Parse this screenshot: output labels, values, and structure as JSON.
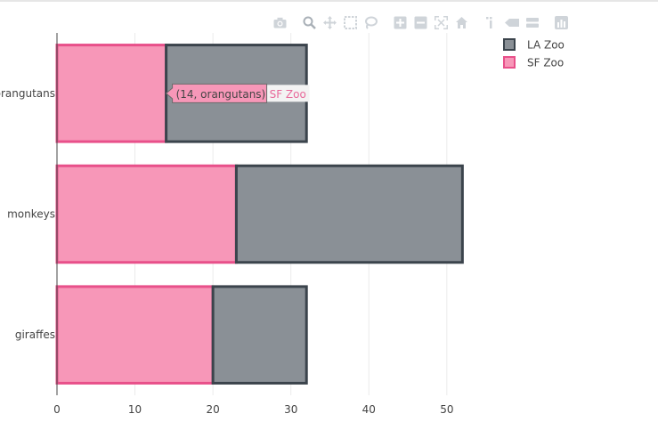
{
  "chart_data": {
    "type": "bar",
    "orientation": "horizontal",
    "barmode": "stack",
    "categories": [
      "giraffes",
      "monkeys",
      "orangutans"
    ],
    "series": [
      {
        "name": "SF Zoo",
        "values": [
          20,
          23,
          14
        ],
        "fill": "#f797b8",
        "line": "#e8508a"
      },
      {
        "name": "LA Zoo",
        "values": [
          12,
          29,
          18
        ],
        "fill": "#8a9096",
        "line": "#3b444c"
      }
    ],
    "x_ticks": [
      0,
      10,
      20,
      30,
      40,
      50
    ],
    "xlim": [
      0,
      54.7
    ],
    "grid": true,
    "legend_position": "top-right",
    "legend": [
      {
        "name": "LA Zoo",
        "fill": "#8a9096",
        "line": "#3b444c"
      },
      {
        "name": "SF Zoo",
        "fill": "#f797b8",
        "line": "#e8508a"
      }
    ],
    "hover": {
      "series": "SF Zoo",
      "category": "orangutans",
      "label": "(14, orangutans)",
      "name": "SF Zoo"
    },
    "colors": {
      "grid": "#ebebeb",
      "axis": "#444444",
      "tick_text": "#444444"
    }
  },
  "modebar": [
    "camera-icon",
    "zoom-icon",
    "pan-icon",
    "box-select-icon",
    "lasso-select-icon",
    "zoom-in-icon",
    "zoom-out-icon",
    "autoscale-icon",
    "reset-axes-icon",
    "toggle-spike-lines-icon",
    "hover-closest-icon",
    "hover-compare-icon",
    "plotly-logo-icon"
  ]
}
